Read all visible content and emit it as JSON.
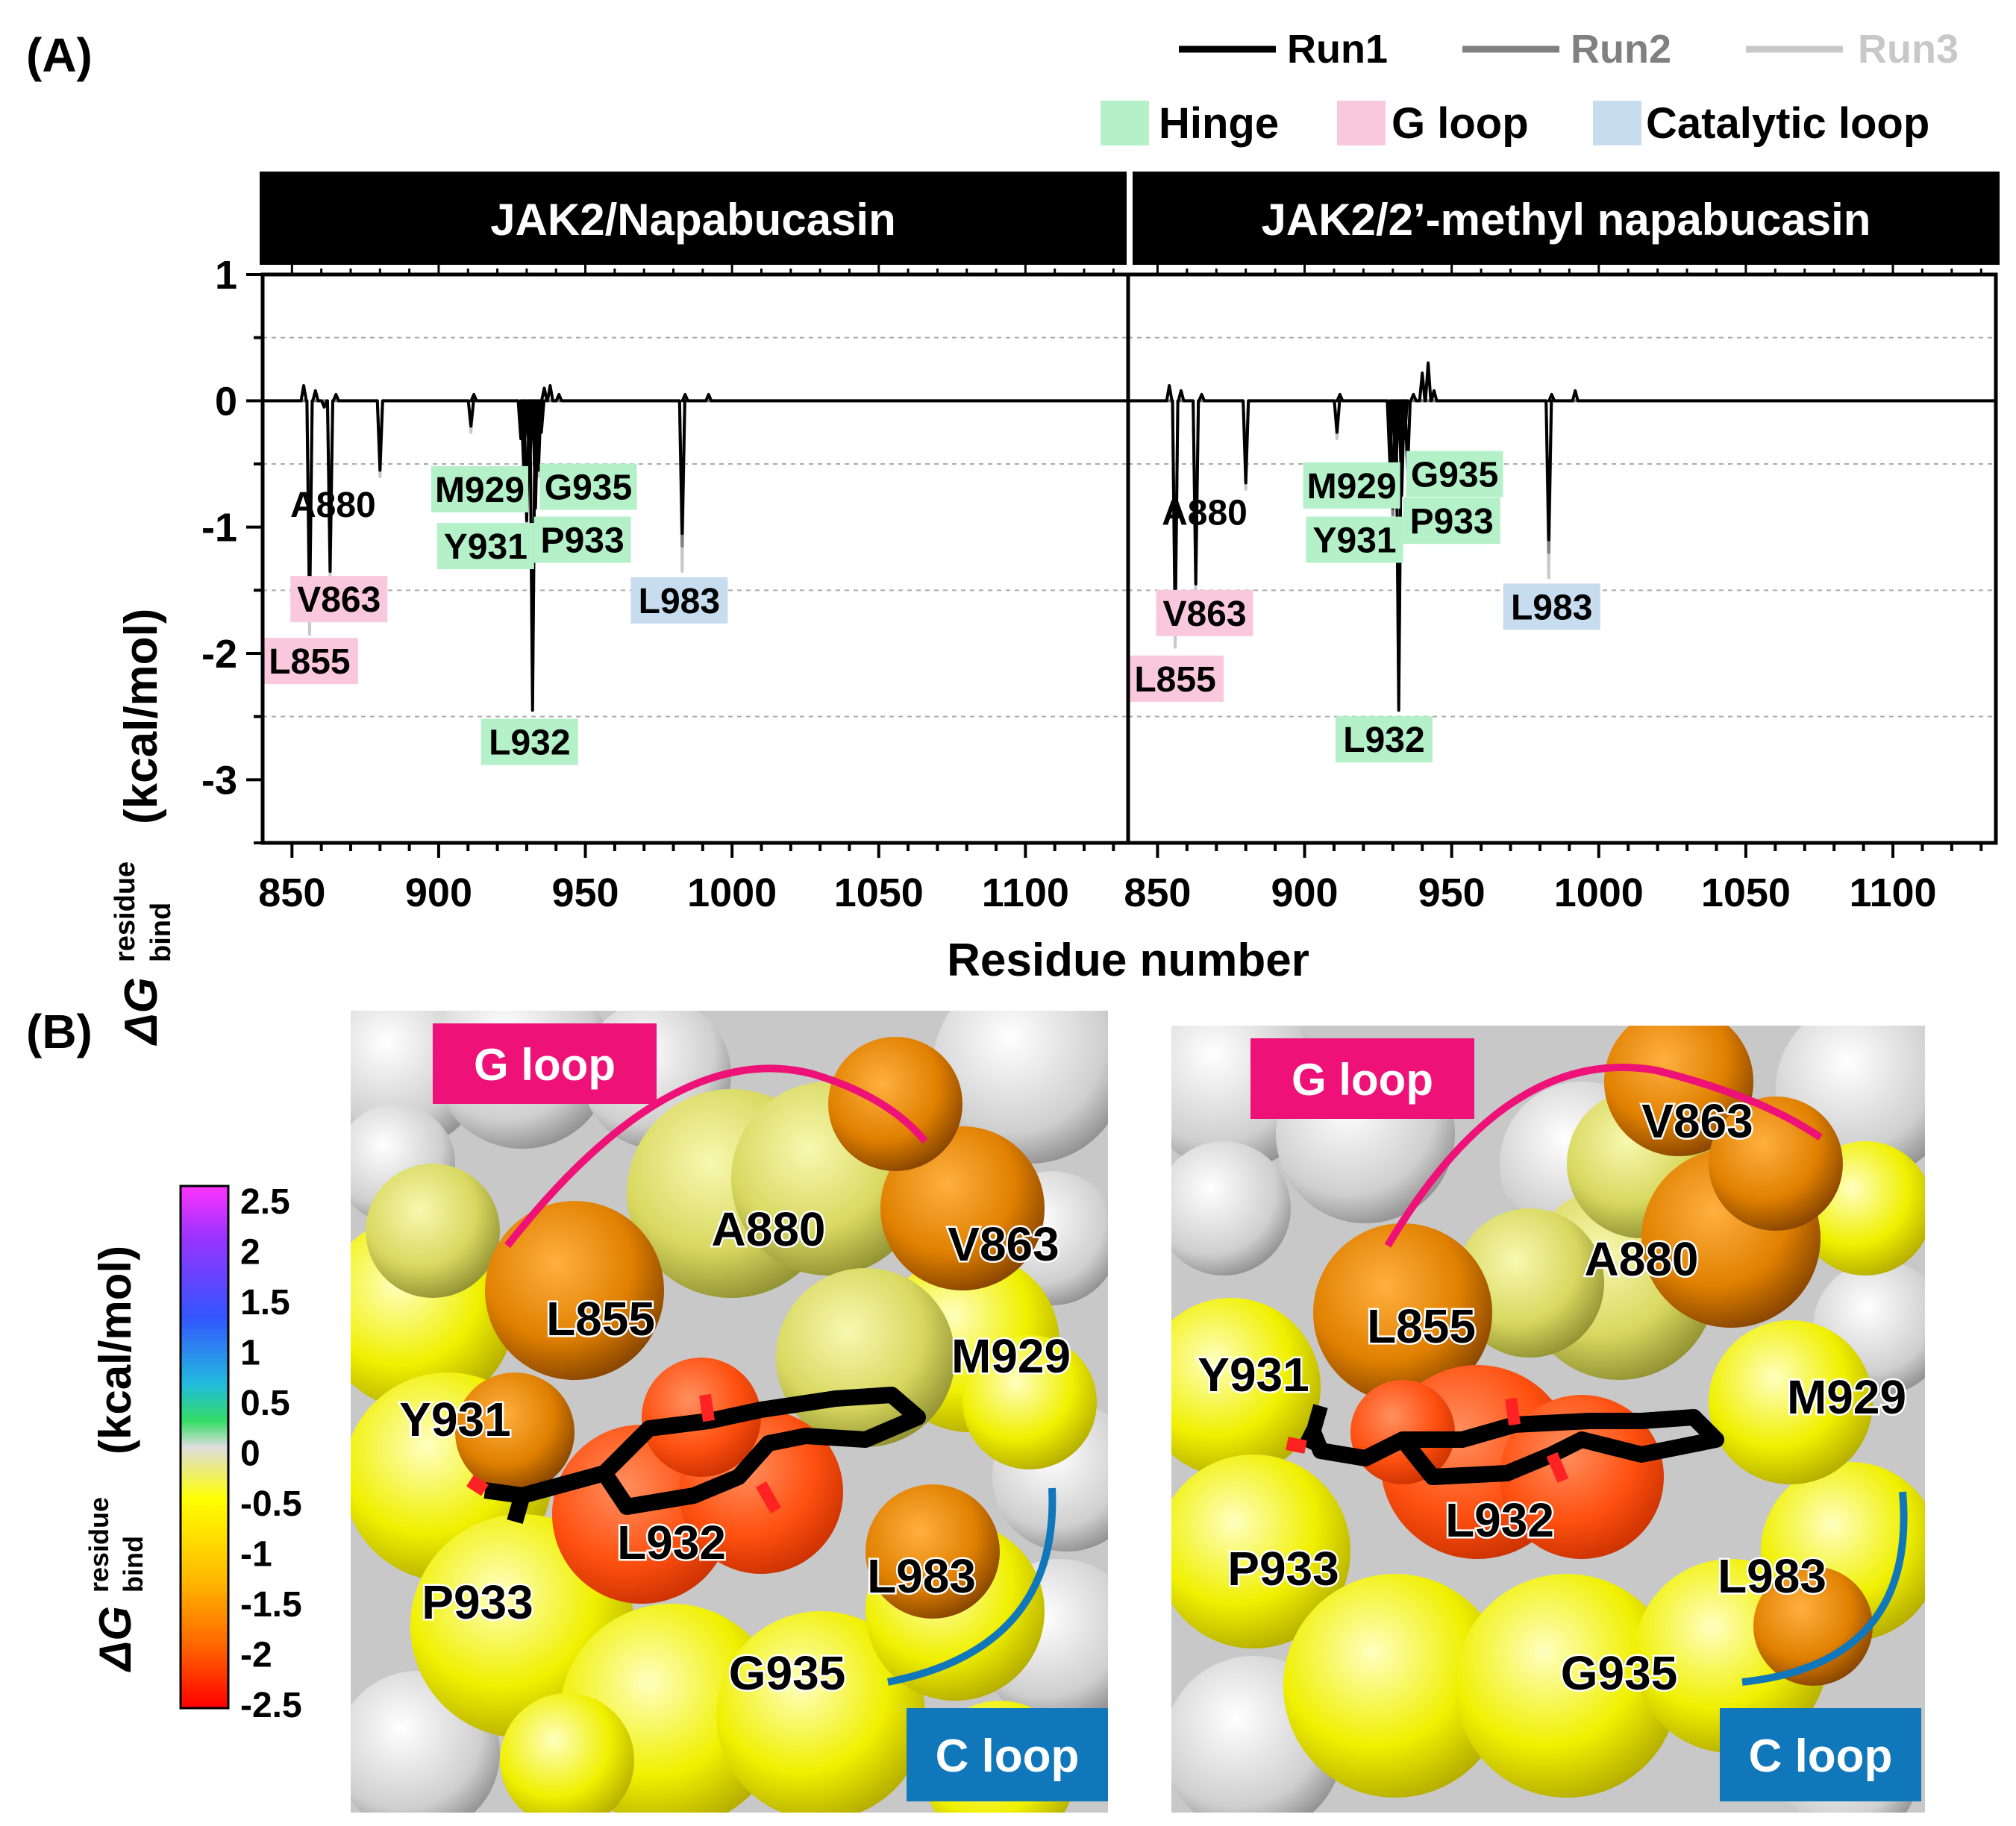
{
  "panel_a_label": "(A)",
  "panel_b_label": "(B)",
  "legend": {
    "runs": [
      {
        "name": "Run1",
        "color": "#000000"
      },
      {
        "name": "Run2",
        "color": "#808080"
      },
      {
        "name": "Run3",
        "color": "#c8c8c8"
      }
    ],
    "regions": [
      {
        "name": "Hinge",
        "color": "#b4f0c8"
      },
      {
        "name": "G loop",
        "color": "#fac8dc"
      },
      {
        "name": "Catalytic loop",
        "color": "#c8dcf0"
      }
    ]
  },
  "chart_data": [
    {
      "type": "line",
      "title": "JAK2/Napabucasin",
      "xlabel": "Residue number",
      "ylabel": "ΔG bind residue (kcal/mol)",
      "ylabel_main": "ΔG",
      "ylabel_super": "residue",
      "ylabel_sub": "bind",
      "ylabel_unit": "(kcal/mol)",
      "xlim": [
        840,
        1135
      ],
      "ylim": [
        -3.5,
        1
      ],
      "xticks": [
        "850",
        "900",
        "950",
        "1000",
        "1050",
        "1100"
      ],
      "yticks": [
        "1",
        "0",
        "-1",
        "-2",
        "-3"
      ],
      "grid_y": [
        0.5,
        -0.5,
        -1.5,
        -2.5
      ],
      "series": [
        {
          "name": "Run1",
          "spikes": [
            [
              854,
              0.12
            ],
            [
              856,
              -1.7
            ],
            [
              858,
              0.08
            ],
            [
              861,
              -0.05
            ],
            [
              863,
              -1.35
            ],
            [
              865,
              0.05
            ],
            [
              880,
              -0.55
            ],
            [
              911,
              -0.2
            ],
            [
              912,
              0.05
            ],
            [
              928,
              -0.3
            ],
            [
              929,
              -0.55
            ],
            [
              930,
              -0.95
            ],
            [
              931,
              -0.55
            ],
            [
              932,
              -2.45
            ],
            [
              933,
              -0.85
            ],
            [
              934,
              -0.55
            ],
            [
              935,
              -0.25
            ],
            [
              936,
              0.1
            ],
            [
              938,
              0.12
            ],
            [
              941,
              0.05
            ],
            [
              983,
              -1.05
            ],
            [
              984,
              0.05
            ],
            [
              992,
              0.05
            ]
          ]
        },
        {
          "name": "Run2",
          "spikes": [
            [
              856,
              -1.6
            ],
            [
              863,
              -1.2
            ],
            [
              880,
              -0.5
            ],
            [
              930,
              -0.9
            ],
            [
              932,
              -2.3
            ],
            [
              933,
              -0.8
            ],
            [
              983,
              -1.15
            ]
          ]
        },
        {
          "name": "Run3",
          "spikes": [
            [
              856,
              -1.85
            ],
            [
              863,
              -1.45
            ],
            [
              880,
              -0.6
            ],
            [
              911,
              -0.25
            ],
            [
              930,
              -1.0
            ],
            [
              932,
              -2.4
            ],
            [
              934,
              -0.6
            ],
            [
              983,
              -1.35
            ]
          ]
        }
      ],
      "annotations": [
        {
          "text": "L855",
          "residue": 856,
          "value": -2.06,
          "region": "G loop"
        },
        {
          "text": "V863",
          "residue": 866,
          "value": -1.57,
          "region": "G loop"
        },
        {
          "text": "A880",
          "residue": 864,
          "value": -0.82,
          "region": "none"
        },
        {
          "text": "M929",
          "residue": 914,
          "value": -0.7,
          "region": "Hinge"
        },
        {
          "text": "Y931",
          "residue": 916,
          "value": -1.15,
          "region": "Hinge"
        },
        {
          "text": "G935",
          "residue": 951,
          "value": -0.68,
          "region": "Hinge"
        },
        {
          "text": "P933",
          "residue": 949,
          "value": -1.1,
          "region": "Hinge"
        },
        {
          "text": "L932",
          "residue": 931,
          "value": -2.7,
          "region": "Hinge"
        },
        {
          "text": "L983",
          "residue": 982,
          "value": -1.58,
          "region": "Catalytic loop"
        }
      ]
    },
    {
      "type": "line",
      "title": "JAK2/2’-methyl napabucasin",
      "xlabel": "Residue number",
      "xlim": [
        840,
        1135
      ],
      "ylim": [
        -3.5,
        1
      ],
      "xticks": [
        "850",
        "900",
        "950",
        "1000",
        "1050",
        "1100"
      ],
      "series": [
        {
          "name": "Run1",
          "spikes": [
            [
              854,
              0.12
            ],
            [
              856,
              -1.8
            ],
            [
              858,
              0.08
            ],
            [
              863,
              -1.45
            ],
            [
              865,
              0.05
            ],
            [
              880,
              -0.65
            ],
            [
              911,
              -0.25
            ],
            [
              912,
              0.05
            ],
            [
              929,
              -0.5
            ],
            [
              930,
              -0.85
            ],
            [
              931,
              -0.6
            ],
            [
              932,
              -2.45
            ],
            [
              933,
              -0.75
            ],
            [
              934,
              -0.3
            ],
            [
              935,
              -0.55
            ],
            [
              937,
              0.05
            ],
            [
              940,
              0.22
            ],
            [
              942,
              0.3
            ],
            [
              944,
              0.08
            ],
            [
              983,
              -1.1
            ],
            [
              984,
              0.05
            ],
            [
              992,
              0.08
            ]
          ]
        },
        {
          "name": "Run2",
          "spikes": [
            [
              856,
              -1.7
            ],
            [
              863,
              -1.3
            ],
            [
              880,
              -0.55
            ],
            [
              930,
              -0.9
            ],
            [
              932,
              -2.3
            ],
            [
              983,
              -1.2
            ]
          ]
        },
        {
          "name": "Run3",
          "spikes": [
            [
              856,
              -1.95
            ],
            [
              863,
              -1.5
            ],
            [
              880,
              -0.7
            ],
            [
              911,
              -0.3
            ],
            [
              930,
              -1.0
            ],
            [
              932,
              -2.4
            ],
            [
              935,
              -0.6
            ],
            [
              983,
              -1.4
            ]
          ]
        }
      ],
      "annotations": [
        {
          "text": "L855",
          "residue": 856,
          "value": -2.2,
          "region": "G loop"
        },
        {
          "text": "V863",
          "residue": 866,
          "value": -1.68,
          "region": "G loop"
        },
        {
          "text": "A880",
          "residue": 866,
          "value": -0.88,
          "region": "none"
        },
        {
          "text": "M929",
          "residue": 916,
          "value": -0.67,
          "region": "Hinge"
        },
        {
          "text": "Y931",
          "residue": 917,
          "value": -1.1,
          "region": "Hinge"
        },
        {
          "text": "G935",
          "residue": 951,
          "value": -0.58,
          "region": "Hinge"
        },
        {
          "text": "P933",
          "residue": 950,
          "value": -0.95,
          "region": "Hinge"
        },
        {
          "text": "L932",
          "residue": 927,
          "value": -2.68,
          "region": "Hinge"
        },
        {
          "text": "L983",
          "residue": 984,
          "value": -1.63,
          "region": "Catalytic loop"
        }
      ]
    }
  ],
  "colorbar": {
    "ylabel_main": "ΔG",
    "ylabel_super": "residue",
    "ylabel_sub": "bind",
    "ylabel_unit": "(kcal/mol)",
    "ticks": [
      "2.5",
      "2",
      "1.5",
      "1",
      "0.5",
      "0",
      "-0.5",
      "-1",
      "-1.5",
      "-2",
      "-2.5"
    ]
  },
  "structure_panels": [
    {
      "g_loop_label": "G loop",
      "c_loop_label": "C loop",
      "residues": [
        "A880",
        "V863",
        "L855",
        "M929",
        "Y931",
        "L932",
        "L983",
        "P933",
        "G935"
      ]
    },
    {
      "g_loop_label": "G loop",
      "c_loop_label": "C loop",
      "residues": [
        "V863",
        "A880",
        "L855",
        "Y931",
        "M929",
        "L932",
        "P933",
        "L983",
        "G935"
      ]
    }
  ]
}
